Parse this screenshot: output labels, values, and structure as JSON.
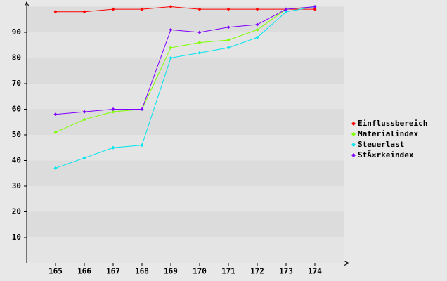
{
  "chart_data": {
    "type": "line",
    "categories": [
      "165",
      "166",
      "167",
      "168",
      "169",
      "170",
      "171",
      "172",
      "173",
      "174"
    ],
    "series": [
      {
        "name": "Einflussbereich",
        "color": "#ff0000",
        "values": [
          98,
          98,
          99,
          99,
          100,
          99,
          99,
          99,
          99,
          99
        ]
      },
      {
        "name": "Materialindex",
        "color": "#7fff00",
        "values": [
          51,
          56,
          59,
          60,
          84,
          86,
          87,
          91,
          99,
          100
        ]
      },
      {
        "name": "Steuerlast",
        "color": "#00e5ee",
        "values": [
          37,
          41,
          45,
          46,
          80,
          82,
          84,
          88,
          98,
          100
        ]
      },
      {
        "name": "StÃ¤rkeindex",
        "color": "#7f00ff",
        "values": [
          58,
          59,
          60,
          60,
          91,
          90,
          92,
          93,
          99,
          100
        ]
      }
    ],
    "ylim": [
      0,
      100
    ],
    "yticks": [
      10,
      20,
      30,
      40,
      50,
      60,
      70,
      80,
      90
    ],
    "grid": true,
    "legend": "right"
  }
}
